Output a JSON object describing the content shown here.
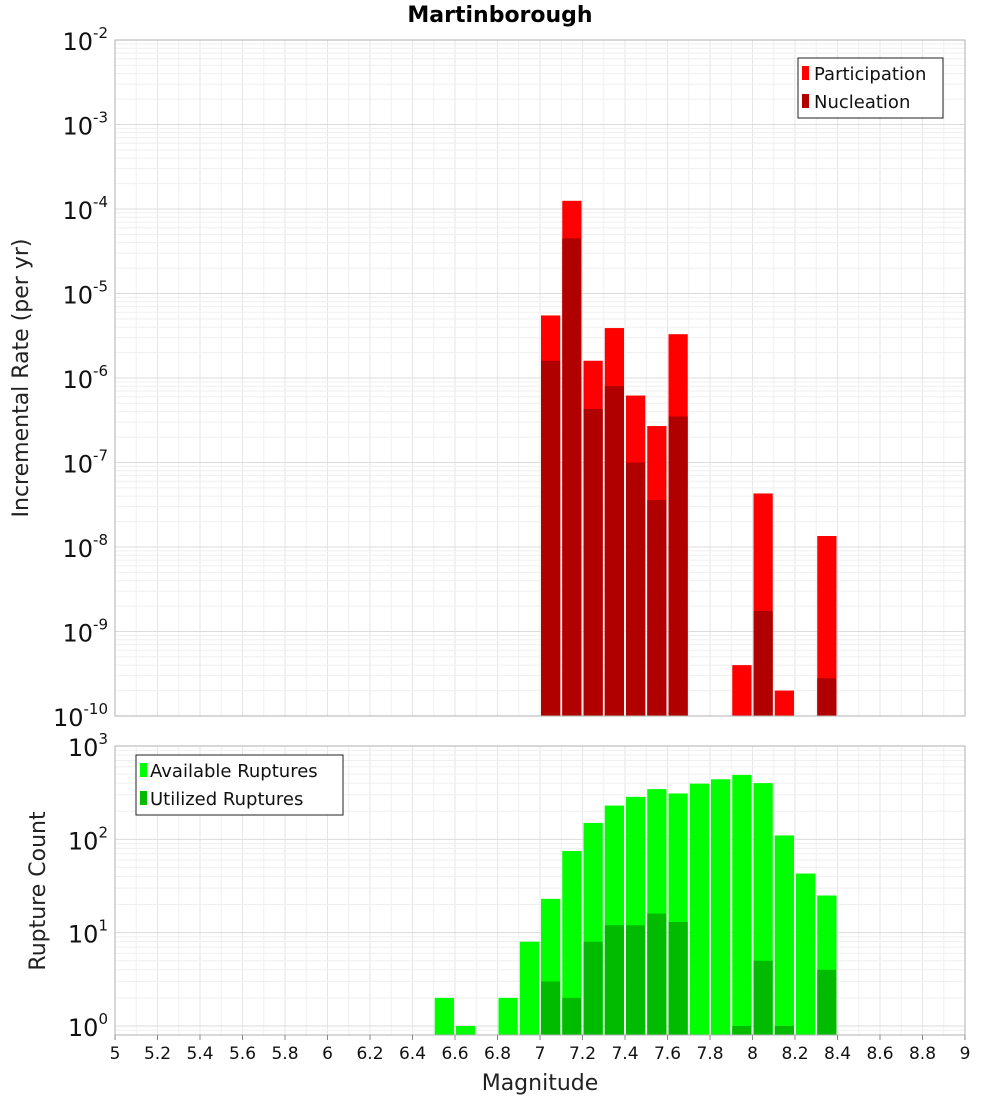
{
  "chart_data": {
    "title": "Martinborough",
    "xlabel": "Magnitude",
    "x_ticks": [
      "5",
      "5.2",
      "5.4",
      "5.6",
      "5.8",
      "6",
      "6.2",
      "6.4",
      "6.6",
      "6.8",
      "7",
      "7.2",
      "7.4",
      "7.6",
      "7.8",
      "8",
      "8.2",
      "8.4",
      "8.6",
      "8.8",
      "9"
    ],
    "xlim": [
      5,
      9
    ],
    "bin_width": 0.1,
    "grid": true,
    "panels": [
      {
        "type": "bar",
        "ylabel": "Incremental Rate (per yr)",
        "yscale": "log",
        "ylim": [
          1e-10,
          0.01
        ],
        "y_ticks": [
          {
            "base": "10",
            "exp": "-10",
            "value": 1e-10
          },
          {
            "base": "10",
            "exp": "-9",
            "value": 1e-09
          },
          {
            "base": "10",
            "exp": "-8",
            "value": 1e-08
          },
          {
            "base": "10",
            "exp": "-7",
            "value": 1e-07
          },
          {
            "base": "10",
            "exp": "-6",
            "value": 1e-06
          },
          {
            "base": "10",
            "exp": "-5",
            "value": 1e-05
          },
          {
            "base": "10",
            "exp": "-4",
            "value": 0.0001
          },
          {
            "base": "10",
            "exp": "-3",
            "value": 0.001
          },
          {
            "base": "10",
            "exp": "-2",
            "value": 0.01
          }
        ],
        "legend_position": "top-right",
        "series": [
          {
            "name": "Participation",
            "color": "#ff0000",
            "x": [
              7.05,
              7.15,
              7.25,
              7.35,
              7.45,
              7.55,
              7.65,
              7.95,
              8.05,
              8.15,
              8.35
            ],
            "values": [
              5.5e-06,
              0.000125,
              1.6e-06,
              3.9e-06,
              6.2e-07,
              2.7e-07,
              3.3e-06,
              4e-10,
              4.3e-08,
              2e-10,
              1.35e-08
            ]
          },
          {
            "name": "Nucleation",
            "color": "#b00000",
            "x": [
              7.05,
              7.15,
              7.25,
              7.35,
              7.45,
              7.55,
              7.65,
              7.95,
              8.05,
              8.15,
              8.35
            ],
            "values": [
              1.6e-06,
              4.5e-05,
              4.3e-07,
              8e-07,
              1e-07,
              3.6e-08,
              3.5e-07,
              null,
              1.75e-09,
              null,
              2.8e-10
            ]
          }
        ]
      },
      {
        "type": "bar",
        "ylabel": "Rupture Count",
        "yscale": "log",
        "ylim": [
          0.8,
          1000
        ],
        "y_ticks": [
          {
            "base": "10",
            "exp": "0",
            "value": 1
          },
          {
            "base": "10",
            "exp": "1",
            "value": 10
          },
          {
            "base": "10",
            "exp": "2",
            "value": 100
          },
          {
            "base": "10",
            "exp": "3",
            "value": 1000
          }
        ],
        "legend_position": "top-left",
        "series": [
          {
            "name": "Available Ruptures",
            "color": "#00ff00",
            "x": [
              6.55,
              6.65,
              6.85,
              6.95,
              7.05,
              7.15,
              7.25,
              7.35,
              7.45,
              7.55,
              7.65,
              7.75,
              7.85,
              7.95,
              8.05,
              8.15,
              8.25,
              8.35
            ],
            "values": [
              2,
              1,
              2,
              8,
              23,
              75,
              150,
              230,
              285,
              345,
              310,
              395,
              440,
              490,
              400,
              110,
              43,
              25
            ]
          },
          {
            "name": "Utilized Ruptures",
            "color": "#00bb00",
            "x": [
              7.05,
              7.15,
              7.25,
              7.35,
              7.45,
              7.55,
              7.65,
              7.95,
              8.05,
              8.15,
              8.35
            ],
            "values": [
              3,
              2,
              8,
              12,
              12,
              16,
              13,
              1,
              5,
              1,
              4
            ]
          }
        ]
      }
    ]
  }
}
